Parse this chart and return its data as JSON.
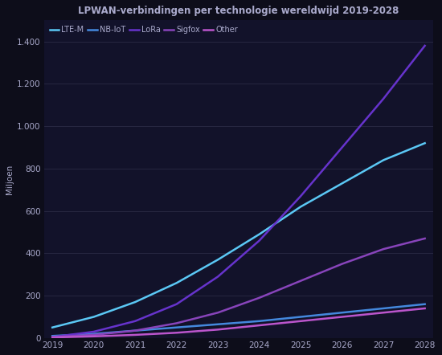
{
  "title": "LPWAN-verbindingen per technologie wereldwijd 2019-2028",
  "background_color": "#0d0d1a",
  "plot_bg_color": "#12122a",
  "grid_color": "#2a2a45",
  "text_color": "#aaaacc",
  "years": [
    2019,
    2020,
    2021,
    2022,
    2023,
    2024,
    2025,
    2026,
    2027,
    2028
  ],
  "series": [
    {
      "label": "LTE-M",
      "color": "#5bc8f5",
      "data": [
        50,
        100,
        170,
        260,
        370,
        490,
        620,
        730,
        840,
        920
      ]
    },
    {
      "label": "NB-IoT",
      "color": "#4488dd",
      "data": [
        10,
        20,
        35,
        50,
        65,
        80,
        100,
        120,
        140,
        160
      ]
    },
    {
      "label": "LoRa",
      "color": "#6633cc",
      "data": [
        5,
        30,
        80,
        160,
        290,
        460,
        670,
        900,
        1130,
        1380
      ]
    },
    {
      "label": "Sigfox",
      "color": "#8844bb",
      "data": [
        5,
        15,
        35,
        70,
        120,
        190,
        270,
        350,
        420,
        470
      ]
    },
    {
      "label": "Other",
      "color": "#bb55cc",
      "data": [
        3,
        8,
        15,
        25,
        40,
        60,
        80,
        100,
        120,
        140
      ]
    }
  ],
  "ylim": [
    0,
    1500
  ],
  "ytick_values": [
    0,
    200,
    400,
    600,
    800,
    1000,
    1200,
    1400
  ],
  "ytick_labels": [
    "0",
    "200",
    "400",
    "600",
    "800",
    "1.000",
    "1.200",
    "1.400"
  ],
  "ylabel": "Miljoen",
  "title_fontsize": 8.5,
  "legend_fontsize": 7,
  "tick_fontsize": 7.5
}
